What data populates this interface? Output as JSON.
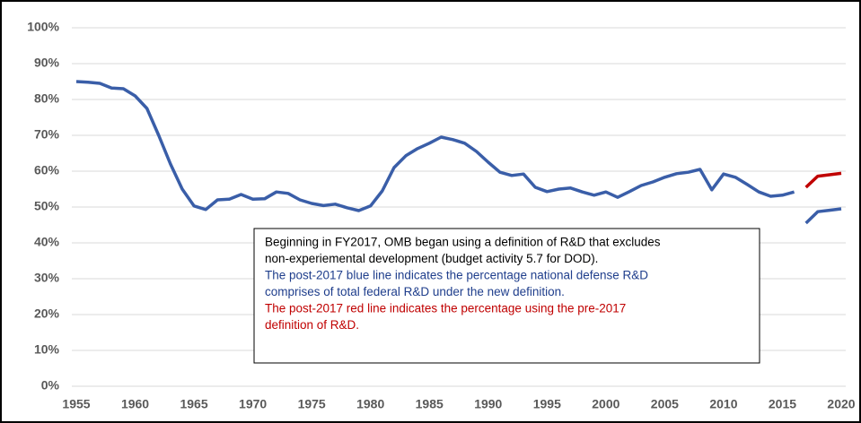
{
  "chart_data": {
    "type": "line",
    "x": [
      1955,
      1956,
      1957,
      1958,
      1959,
      1960,
      1961,
      1962,
      1963,
      1964,
      1965,
      1966,
      1967,
      1968,
      1969,
      1970,
      1971,
      1972,
      1973,
      1974,
      1975,
      1976,
      1977,
      1978,
      1979,
      1980,
      1981,
      1982,
      1983,
      1984,
      1985,
      1986,
      1987,
      1988,
      1989,
      1990,
      1991,
      1992,
      1993,
      1994,
      1995,
      1996,
      1997,
      1998,
      1999,
      2000,
      2001,
      2002,
      2003,
      2004,
      2005,
      2006,
      2007,
      2008,
      2009,
      2010,
      2011,
      2012,
      2013,
      2014,
      2015,
      2016,
      2017,
      2018,
      2019,
      2020
    ],
    "series": [
      {
        "color": "#3a5ea8",
        "values": [
          85,
          84.8,
          84.5,
          83.2,
          83,
          81,
          77.5,
          70,
          62,
          55,
          50.3,
          49.3,
          52,
          52.2,
          53.5,
          52.2,
          52.3,
          54.2,
          53.8,
          52,
          51,
          50.4,
          50.8,
          49.8,
          49,
          50.3,
          54.5,
          61,
          64.3,
          66.3,
          67.8,
          69.5,
          68.8,
          67.8,
          65.5,
          62.5,
          59.7,
          58.8,
          59.2,
          55.5,
          54.3,
          55,
          55.3,
          54.2,
          53.3,
          54.2,
          52.7,
          54.3,
          56,
          57,
          58.3,
          59.3,
          59.7,
          60.5,
          54.8,
          59.2,
          58.3,
          56.3,
          54.2,
          53,
          53.3,
          54.2,
          null,
          null,
          null,
          null
        ]
      },
      {
        "color": "#3a5ea8",
        "values": [
          null,
          null,
          null,
          null,
          null,
          null,
          null,
          null,
          null,
          null,
          null,
          null,
          null,
          null,
          null,
          null,
          null,
          null,
          null,
          null,
          null,
          null,
          null,
          null,
          null,
          null,
          null,
          null,
          null,
          null,
          null,
          null,
          null,
          null,
          null,
          null,
          null,
          null,
          null,
          null,
          null,
          null,
          null,
          null,
          null,
          null,
          null,
          null,
          null,
          null,
          null,
          null,
          null,
          null,
          null,
          null,
          null,
          null,
          null,
          null,
          null,
          null,
          45.5,
          48.7,
          49.1,
          49.5
        ]
      },
      {
        "color": "#c00000",
        "values": [
          null,
          null,
          null,
          null,
          null,
          null,
          null,
          null,
          null,
          null,
          null,
          null,
          null,
          null,
          null,
          null,
          null,
          null,
          null,
          null,
          null,
          null,
          null,
          null,
          null,
          null,
          null,
          null,
          null,
          null,
          null,
          null,
          null,
          null,
          null,
          null,
          null,
          null,
          null,
          null,
          null,
          null,
          null,
          null,
          null,
          null,
          null,
          null,
          null,
          null,
          null,
          null,
          null,
          null,
          null,
          null,
          null,
          null,
          null,
          null,
          null,
          null,
          55.5,
          58.6,
          59,
          59.4
        ]
      }
    ],
    "xlim": [
      1955,
      2020
    ],
    "xticks": [
      1955,
      1960,
      1965,
      1970,
      1975,
      1980,
      1985,
      1990,
      1995,
      2000,
      2005,
      2010,
      2015,
      2020
    ],
    "ylim": [
      0,
      100
    ],
    "yticks": [
      {
        "value": 0,
        "label": "0%"
      },
      {
        "value": 10,
        "label": "10%"
      },
      {
        "value": 20,
        "label": "20%"
      },
      {
        "value": 30,
        "label": "30%"
      },
      {
        "value": 40,
        "label": "40%"
      },
      {
        "value": 50,
        "label": "50%"
      },
      {
        "value": 60,
        "label": "60%"
      },
      {
        "value": 70,
        "label": "70%"
      },
      {
        "value": 80,
        "label": "80%"
      },
      {
        "value": 90,
        "label": "90%"
      },
      {
        "value": 100,
        "label": "100%"
      }
    ],
    "grid": true,
    "annotation": [
      {
        "color": "#000000",
        "lines": [
          "Beginning in FY2017, OMB began using a definition of R&D that excludes",
          "non-experiemental development  (budget activity 5.7 for DOD)."
        ]
      },
      {
        "color": "#1f3e8c",
        "lines": [
          "The post-2017 blue line indicates the percentage national defense R&D",
          "comprises of total federal R&D under the new definition."
        ]
      },
      {
        "color": "#c00000",
        "lines": [
          "The post-2017 red line indicates the percentage using the pre-2017",
          "definition of R&D."
        ]
      }
    ]
  }
}
